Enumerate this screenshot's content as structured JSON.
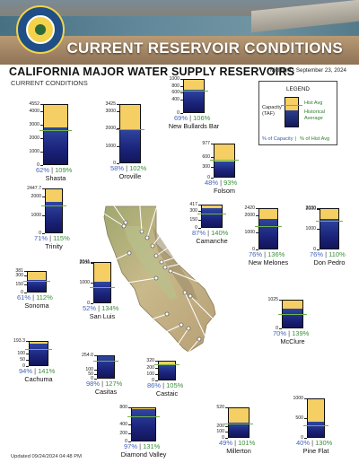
{
  "header": {
    "banner_title": "CURRENT RESERVOIR CONDITIONS",
    "main_title": "CALIFORNIA MAJOR WATER SUPPLY RESERVOIRS",
    "subtitle": "CURRENT CONDITIONS",
    "timestamp": "Midnight - September 23, 2024"
  },
  "footer": {
    "updated": "Updated 09/24/2024 04:48 PM"
  },
  "legend": {
    "title": "LEGEND",
    "hist_avg": "Hist Avg",
    "historical_average": "Historical Average",
    "capacity": "Capacity (TAF)",
    "pct_capacity": "% of Capacity",
    "pct_hist_avg": "% of Hist Avg"
  },
  "colors": {
    "capacity": "#f5cf63",
    "storage": "#1b237a",
    "hist_avg_line": "#6fb34c",
    "pct_capacity_text": "#4464b8",
    "pct_hist_text": "#3a8f3a"
  },
  "chart_data": {
    "type": "bar",
    "reservoirs": [
      {
        "name": "Shasta",
        "capacity": 4552,
        "ticks": [
          "4552",
          "4000",
          "3000",
          "2000",
          "1000",
          "0"
        ],
        "pct_capacity": 62,
        "pct_hist": 109
      },
      {
        "name": "Oroville",
        "capacity": 3425,
        "ticks": [
          "3425",
          "3000",
          "2000",
          "1000",
          "0"
        ],
        "pct_capacity": 58,
        "pct_hist": 102
      },
      {
        "name": "New Bullards Bar",
        "capacity": 1000,
        "ticks": [
          "1000",
          "800",
          "600",
          "400",
          "0"
        ],
        "pct_capacity": 69,
        "pct_hist": 106
      },
      {
        "name": "Folsom",
        "capacity": 977,
        "ticks": [
          "977",
          "600",
          "300",
          "0"
        ],
        "pct_capacity": 48,
        "pct_hist": 93
      },
      {
        "name": "Trinity",
        "capacity": 2447.7,
        "ticks": [
          "2447.7",
          "2000",
          "1000",
          "0"
        ],
        "pct_capacity": 71,
        "pct_hist": 115
      },
      {
        "name": "Camanche",
        "capacity": 417,
        "ticks": [
          "417",
          "300",
          "150",
          "0"
        ],
        "pct_capacity": 87,
        "pct_hist": 140
      },
      {
        "name": "New Melones",
        "capacity": 2420,
        "ticks": [
          "2420",
          "2000",
          "1000",
          "0"
        ],
        "pct_capacity": 76,
        "pct_hist": 136
      },
      {
        "name": "Don Pedro",
        "capacity": 2030,
        "ticks": [
          "2030",
          "2000",
          "1000",
          "0"
        ],
        "pct_capacity": 76,
        "pct_hist": 110
      },
      {
        "name": "Sonoma",
        "capacity": 381,
        "ticks": [
          "381",
          "300",
          "150",
          "0"
        ],
        "pct_capacity": 61,
        "pct_hist": 112
      },
      {
        "name": "San Luis",
        "capacity": 2041,
        "ticks": [
          "2041",
          "2000",
          "1000",
          "0"
        ],
        "pct_capacity": 52,
        "pct_hist": 134
      },
      {
        "name": "McClure",
        "capacity": 1025,
        "ticks": [
          "1025",
          "0"
        ],
        "pct_capacity": 70,
        "pct_hist": 139
      },
      {
        "name": "Cachuma",
        "capacity": 193.3,
        "ticks": [
          "193.3",
          "100",
          "50",
          "0"
        ],
        "pct_capacity": 94,
        "pct_hist": 141
      },
      {
        "name": "Castaic",
        "capacity": 320,
        "ticks": [
          "320",
          "200",
          "100",
          "0"
        ],
        "pct_capacity": 86,
        "pct_hist": 105
      },
      {
        "name": "Casitas",
        "capacity": 254.0,
        "ticks": [
          "254.0",
          "100",
          "50",
          "0"
        ],
        "pct_capacity": 98,
        "pct_hist": 127
      },
      {
        "name": "Diamond Valley",
        "capacity": 800,
        "ticks": [
          "800",
          "400",
          "200",
          "0"
        ],
        "pct_capacity": 97,
        "pct_hist": 131
      },
      {
        "name": "Millerton",
        "capacity": 520,
        "ticks": [
          "520",
          "200",
          "100",
          "0"
        ],
        "pct_capacity": 49,
        "pct_hist": 101
      },
      {
        "name": "Pine Flat",
        "capacity": 1000,
        "ticks": [
          "1000",
          "500",
          "0"
        ],
        "pct_capacity": 40,
        "pct_hist": 130
      }
    ]
  }
}
